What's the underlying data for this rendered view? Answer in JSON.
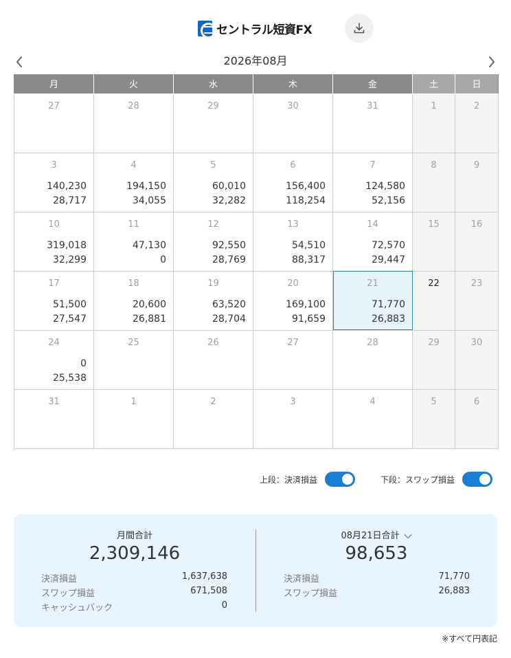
{
  "header": {
    "brand": "セントラル短資FX",
    "download_icon": "download-icon"
  },
  "nav": {
    "month_title": "2026年08月",
    "prev_icon": "chevron-left-icon",
    "next_icon": "chevron-right-icon"
  },
  "weekdays": [
    "月",
    "火",
    "水",
    "木",
    "金",
    "土",
    "日"
  ],
  "weeks": [
    [
      {
        "day": "27",
        "v1": "",
        "v2": ""
      },
      {
        "day": "28",
        "v1": "",
        "v2": ""
      },
      {
        "day": "29",
        "v1": "",
        "v2": ""
      },
      {
        "day": "30",
        "v1": "",
        "v2": ""
      },
      {
        "day": "31",
        "v1": "",
        "v2": ""
      },
      {
        "day": "1",
        "v1": "",
        "v2": ""
      },
      {
        "day": "2",
        "v1": "",
        "v2": ""
      }
    ],
    [
      {
        "day": "3",
        "v1": "140,230",
        "v2": "28,717"
      },
      {
        "day": "4",
        "v1": "194,150",
        "v2": "34,055"
      },
      {
        "day": "5",
        "v1": "60,010",
        "v2": "32,282"
      },
      {
        "day": "6",
        "v1": "156,400",
        "v2": "118,254"
      },
      {
        "day": "7",
        "v1": "124,580",
        "v2": "52,156"
      },
      {
        "day": "8",
        "v1": "",
        "v2": ""
      },
      {
        "day": "9",
        "v1": "",
        "v2": ""
      }
    ],
    [
      {
        "day": "10",
        "v1": "319,018",
        "v2": "32,299"
      },
      {
        "day": "11",
        "v1": "47,130",
        "v2": "0"
      },
      {
        "day": "12",
        "v1": "92,550",
        "v2": "28,769"
      },
      {
        "day": "13",
        "v1": "54,510",
        "v2": "88,317"
      },
      {
        "day": "14",
        "v1": "72,570",
        "v2": "29,447"
      },
      {
        "day": "15",
        "v1": "",
        "v2": ""
      },
      {
        "day": "16",
        "v1": "",
        "v2": ""
      }
    ],
    [
      {
        "day": "17",
        "v1": "51,500",
        "v2": "27,547"
      },
      {
        "day": "18",
        "v1": "20,600",
        "v2": "26,881"
      },
      {
        "day": "19",
        "v1": "63,520",
        "v2": "28,704"
      },
      {
        "day": "20",
        "v1": "169,100",
        "v2": "91,659"
      },
      {
        "day": "21",
        "v1": "71,770",
        "v2": "26,883"
      },
      {
        "day": "22",
        "v1": "",
        "v2": ""
      },
      {
        "day": "23",
        "v1": "",
        "v2": ""
      }
    ],
    [
      {
        "day": "24",
        "v1": "0",
        "v2": "25,538"
      },
      {
        "day": "25",
        "v1": "",
        "v2": ""
      },
      {
        "day": "26",
        "v1": "",
        "v2": ""
      },
      {
        "day": "27",
        "v1": "",
        "v2": ""
      },
      {
        "day": "28",
        "v1": "",
        "v2": ""
      },
      {
        "day": "29",
        "v1": "",
        "v2": ""
      },
      {
        "day": "30",
        "v1": "",
        "v2": ""
      }
    ],
    [
      {
        "day": "31",
        "v1": "",
        "v2": ""
      },
      {
        "day": "1",
        "v1": "",
        "v2": ""
      },
      {
        "day": "2",
        "v1": "",
        "v2": ""
      },
      {
        "day": "3",
        "v1": "",
        "v2": ""
      },
      {
        "day": "4",
        "v1": "",
        "v2": ""
      },
      {
        "day": "5",
        "v1": "",
        "v2": ""
      },
      {
        "day": "6",
        "v1": "",
        "v2": ""
      }
    ]
  ],
  "selected": {
    "week": 3,
    "col": 4
  },
  "today": {
    "week": 3,
    "col": 5
  },
  "toggles": {
    "upper_label": "上段：決済損益",
    "lower_label": "下段：スワップ損益",
    "upper_on": true,
    "lower_on": true
  },
  "summary": {
    "monthly": {
      "title": "月間合計",
      "total": "2,309,146",
      "rows": [
        {
          "label": "決済損益",
          "value": "1,637,638"
        },
        {
          "label": "スワップ損益",
          "value": "671,508"
        },
        {
          "label": "キャッシュバック",
          "value": "0"
        }
      ]
    },
    "daily": {
      "title": "08月21日合計",
      "total": "98,653",
      "rows": [
        {
          "label": "決済損益",
          "value": "71,770"
        },
        {
          "label": "スワップ損益",
          "value": "26,883"
        }
      ]
    }
  },
  "footnote": "※すべて円表記",
  "colors": {
    "accent": "#1a7fd4",
    "header_gray": "#8a8a8a",
    "weekend_header": "#a8a8a8",
    "weekend_cell": "#f4f4f4",
    "summary_bg": "#e7f3fd",
    "selected_border": "#2a88c8"
  }
}
